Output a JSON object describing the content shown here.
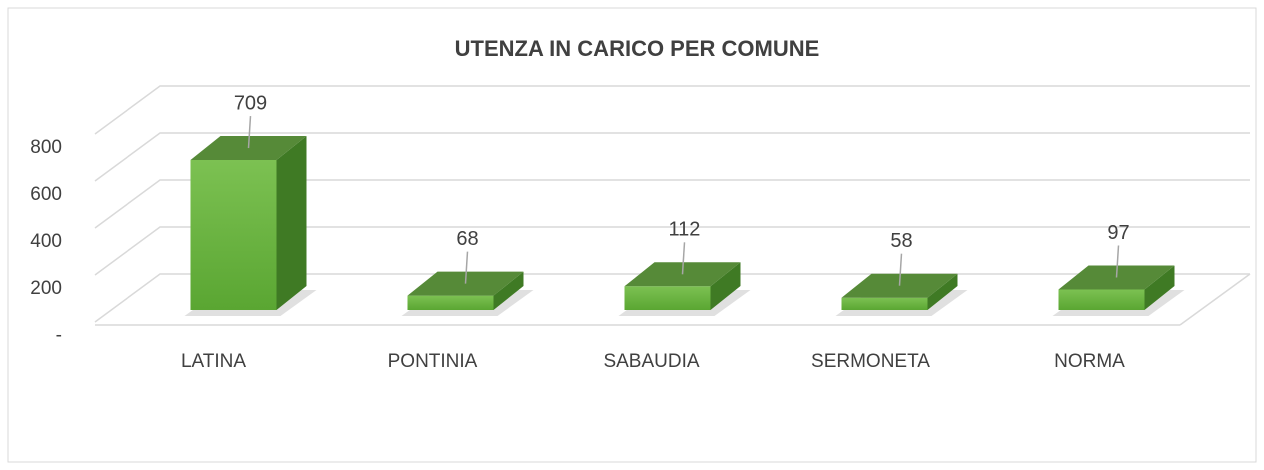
{
  "chart_data": {
    "type": "bar3d",
    "title": "UTENZA IN CARICO PER COMUNE",
    "categories": [
      "LATINA",
      "PONTINIA",
      "SABAUDIA",
      "SERMONETA",
      "NORMA"
    ],
    "values": [
      709,
      68,
      112,
      58,
      97
    ],
    "color": "#6ab43e",
    "ylim": [
      0,
      800
    ],
    "yticks": [
      {
        "value": 0,
        "label": "-"
      },
      200,
      400,
      600,
      800
    ],
    "grid": true
  }
}
